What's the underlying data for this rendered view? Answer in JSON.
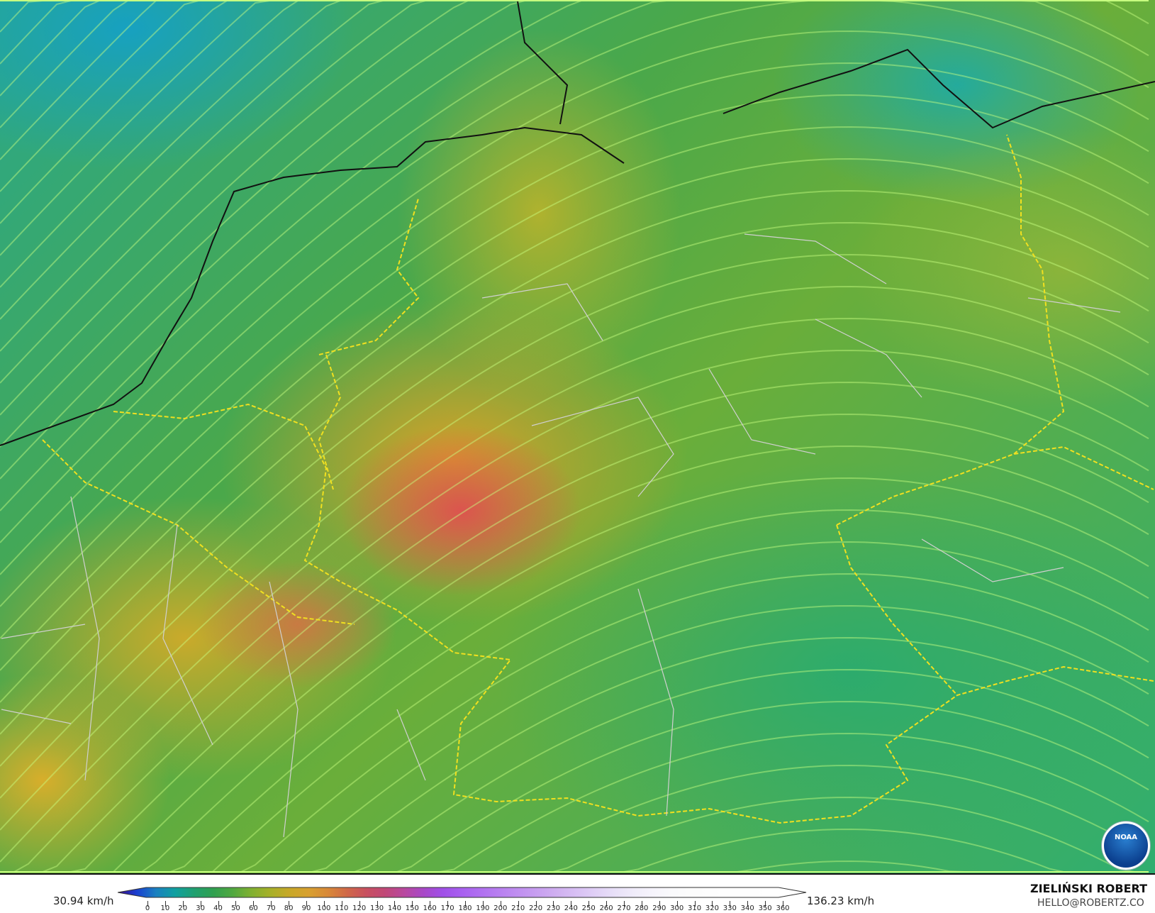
{
  "map": {
    "variable": "wind speed",
    "min_value": "30.94 km/h",
    "max_value": "136.23 km/h",
    "colors": {
      "low": "#2aa88a",
      "mid": "#d8a830",
      "high": "#d85050",
      "streamline": "#c8ff80",
      "border_major": "#f0e020",
      "border_minor": "#c0c0c0"
    }
  },
  "colorbar": {
    "ticks": [
      "0",
      "10",
      "20",
      "30",
      "40",
      "50",
      "60",
      "70",
      "80",
      "90",
      "100",
      "110",
      "120",
      "130",
      "140",
      "150",
      "160",
      "170",
      "180",
      "190",
      "200",
      "210",
      "220",
      "230",
      "240",
      "250",
      "260",
      "270",
      "280",
      "290",
      "300",
      "310",
      "320",
      "330",
      "340",
      "350",
      "360"
    ],
    "stops": [
      "#3b0a8c",
      "#1a40d0",
      "#1a80c0",
      "#10a0a0",
      "#20a070",
      "#30a050",
      "#50a840",
      "#80b030",
      "#a8b028",
      "#c8a828",
      "#d8a030",
      "#d88838",
      "#d06848",
      "#c85060",
      "#c04878",
      "#b848a0",
      "#a848c8",
      "#a050e8",
      "#a860f0",
      "#b070f0",
      "#b880f0",
      "#c090f0",
      "#c8a0f0",
      "#d0b0f0",
      "#d8c0f4",
      "#e0d0f6",
      "#e8e0f8",
      "#f0ecfa",
      "#f6f4fc",
      "#fafafc",
      "#fcfcfc",
      "#fdfdfd",
      "#fefefe",
      "#fefefe",
      "#ffffff",
      "#ffffff",
      "#ffffff"
    ]
  },
  "credit": {
    "name": "ZIELIŃSKI ROBERT",
    "email": "HELLO@ROBERTZ.CO"
  },
  "logo": {
    "text": "NOAA"
  }
}
